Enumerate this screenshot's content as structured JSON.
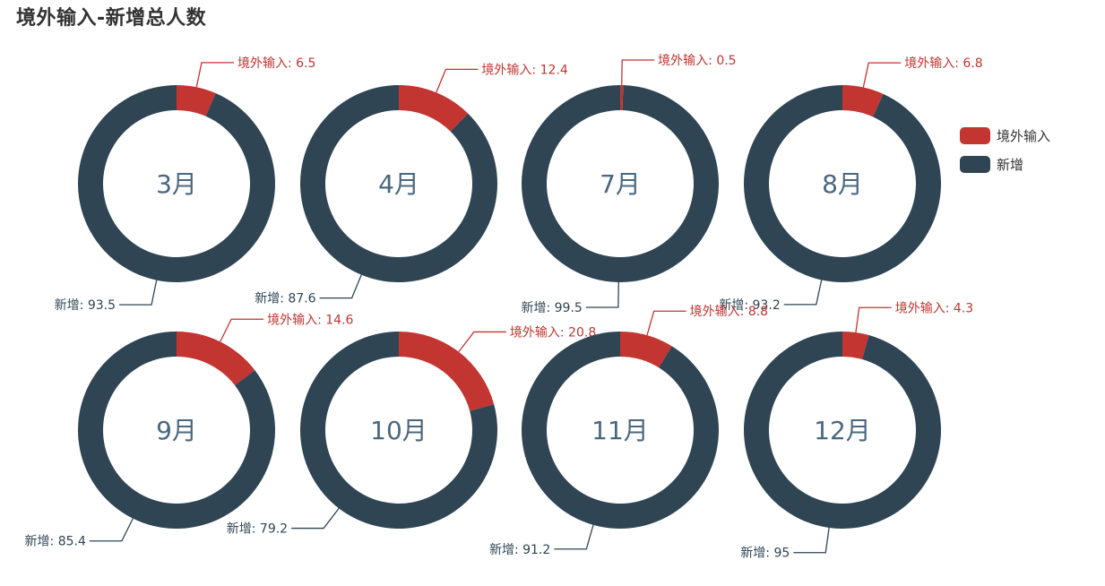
{
  "chart_data": {
    "type": "pie",
    "variant": "donut",
    "title": "境外输入-新增总人数",
    "series_names": [
      "境外输入",
      "新增"
    ],
    "colors": {
      "境外输入": "#c23531",
      "新增": "#2f4554"
    },
    "center_label_color": "#4a6780",
    "legend": {
      "placement": "right",
      "items": [
        "境外输入",
        "新增"
      ]
    },
    "charts": [
      {
        "month": "3月",
        "slices": [
          {
            "name": "境外输入",
            "value": 6.5
          },
          {
            "name": "新增",
            "value": 93.5
          }
        ]
      },
      {
        "month": "4月",
        "slices": [
          {
            "name": "境外输入",
            "value": 12.4
          },
          {
            "name": "新增",
            "value": 87.6
          }
        ]
      },
      {
        "month": "7月",
        "slices": [
          {
            "name": "境外输入",
            "value": 0.5
          },
          {
            "name": "新增",
            "value": 99.5
          }
        ]
      },
      {
        "month": "8月",
        "slices": [
          {
            "name": "境外输入",
            "value": 6.8
          },
          {
            "name": "新增",
            "value": 93.2
          }
        ]
      },
      {
        "month": "9月",
        "slices": [
          {
            "name": "境外输入",
            "value": 14.6
          },
          {
            "name": "新增",
            "value": 85.4
          }
        ]
      },
      {
        "month": "10月",
        "slices": [
          {
            "name": "境外输入",
            "value": 20.8
          },
          {
            "name": "新增",
            "value": 79.2
          }
        ]
      },
      {
        "month": "11月",
        "slices": [
          {
            "name": "境外输入",
            "value": 8.8
          },
          {
            "name": "新增",
            "value": 91.2
          }
        ]
      },
      {
        "month": "12月",
        "slices": [
          {
            "name": "境外输入",
            "value": 4.3
          },
          {
            "name": "新增",
            "value": 95
          }
        ]
      }
    ]
  }
}
